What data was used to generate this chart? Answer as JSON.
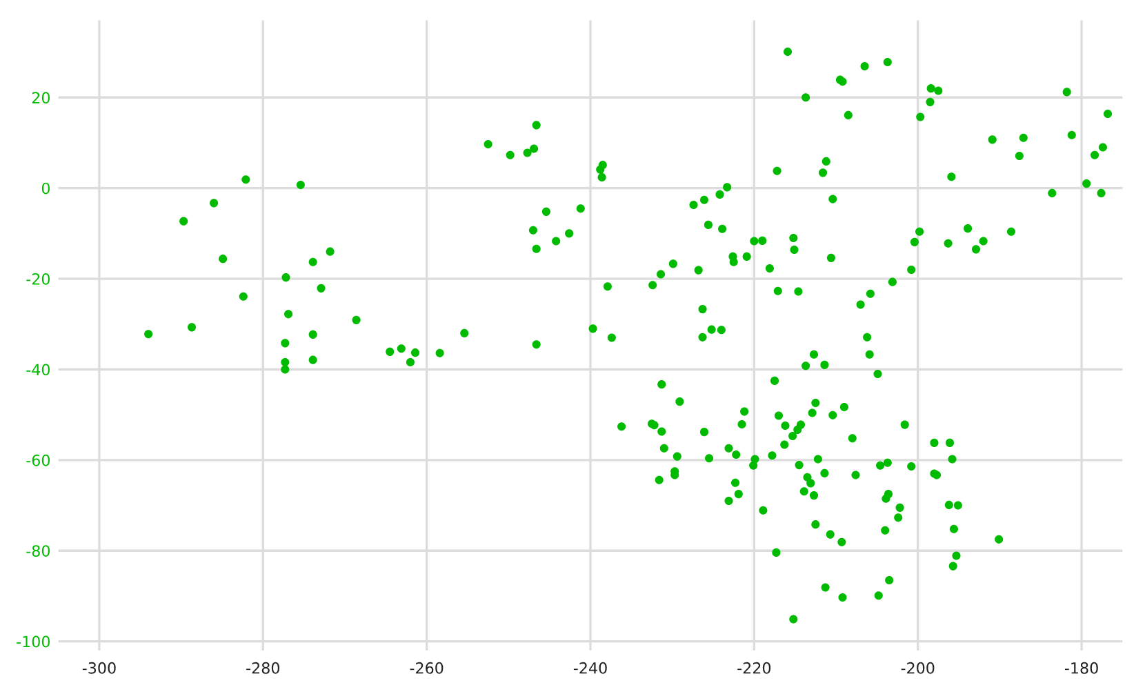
{
  "chart_data": {
    "type": "scatter",
    "series": [
      {
        "color": "#00bb00",
        "x": [
          -282.1,
          -275.4,
          -286.0,
          -289.7,
          -284.9,
          -271.8,
          -273.9,
          -277.2,
          -272.9,
          -282.4,
          -276.9,
          -268.6,
          -294.0,
          -288.7,
          -273.9,
          -277.3,
          -277.3,
          -277.3,
          -273.9,
          -264.5,
          -263.1,
          -262.0,
          -261.4,
          -258.4,
          -255.4,
          -246.6,
          -239.7,
          -237.4,
          -226.3,
          -225.2,
          -224.0,
          -246.6,
          -252.5,
          -249.8,
          -247.7,
          -246.9,
          -238.5,
          -238.8,
          -238.6,
          -245.4,
          -241.2,
          -247.0,
          -242.6,
          -244.2,
          -246.6,
          -237.9,
          -227.4,
          -226.1,
          -224.2,
          -223.3,
          -225.6,
          -223.9,
          -220.0,
          -219.0,
          -222.6,
          -222.5,
          -220.9,
          -218.1,
          -229.9,
          -231.4,
          -232.4,
          -226.8,
          -226.3,
          -215.9,
          -209.5,
          -209.2,
          -206.5,
          -203.7,
          -213.7,
          -208.5,
          -198.4,
          -197.5,
          -198.5,
          -199.7,
          -181.8,
          -176.8,
          -181.2,
          -187.1,
          -190.9,
          -187.6,
          -177.4,
          -178.4,
          -179.4,
          -183.6,
          -177.6,
          -195.9,
          -217.2,
          -211.2,
          -211.6,
          -210.4,
          -215.2,
          -215.1,
          -210.6,
          -217.1,
          -214.6,
          -199.8,
          -200.4,
          -200.8,
          -203.1,
          -205.8,
          -207.0,
          -206.2,
          -196.3,
          -193.9,
          -192.9,
          -192.0,
          -188.6,
          -205.9,
          -204.9,
          -212.7,
          -213.7,
          -211.4,
          -217.5,
          -217.0,
          -212.5,
          -212.9,
          -210.4,
          -209.0,
          -216.2,
          -214.3,
          -214.7,
          -215.3,
          -216.3,
          -217.8,
          -208.0,
          -212.2,
          -211.4,
          -214.5,
          -213.5,
          -213.1,
          -213.9,
          -212.7,
          -207.6,
          -201.6,
          -204.6,
          -203.7,
          -200.8,
          -198.0,
          -196.1,
          -195.8,
          -198.0,
          -197.7,
          -203.6,
          -203.9,
          -202.2,
          -202.4,
          -204.0,
          -196.2,
          -195.1,
          -195.6,
          -195.3,
          -195.7,
          -190.1,
          -212.5,
          -210.7,
          -209.3,
          -217.3,
          -211.3,
          -209.2,
          -204.8,
          -203.5,
          -215.2,
          -231.3,
          -229.1,
          -236.2,
          -232.5,
          -232.2,
          -231.3,
          -231.0,
          -229.4,
          -229.7,
          -229.7,
          -231.6,
          -226.1,
          -225.5,
          -223.1,
          -222.2,
          -221.5,
          -221.2,
          -219.9,
          -220.1,
          -222.3,
          -221.9,
          -223.1,
          -218.9
        ],
        "values": [
          1.9,
          0.7,
          -3.3,
          -7.3,
          -15.6,
          -14.0,
          -16.3,
          -19.7,
          -22.1,
          -23.9,
          -27.8,
          -29.1,
          -32.2,
          -30.7,
          -32.3,
          -34.2,
          -38.4,
          -40.0,
          -37.9,
          -36.1,
          -35.4,
          -38.4,
          -36.3,
          -36.4,
          -32.0,
          -34.5,
          -31.0,
          -33.0,
          -32.9,
          -31.2,
          -31.3,
          13.9,
          9.7,
          7.3,
          7.8,
          8.7,
          5.1,
          4.1,
          2.4,
          -5.2,
          -4.5,
          -9.3,
          -10.0,
          -11.7,
          -13.4,
          -21.7,
          -3.7,
          -2.6,
          -1.4,
          0.2,
          -8.1,
          -9.0,
          -11.7,
          -11.6,
          -15.1,
          -16.3,
          -15.1,
          -17.7,
          -16.7,
          -19.0,
          -21.4,
          -18.1,
          -26.7,
          30.1,
          23.9,
          23.5,
          26.9,
          27.8,
          20.0,
          16.1,
          22.0,
          21.5,
          19.0,
          15.7,
          21.2,
          16.4,
          11.7,
          11.1,
          10.7,
          7.1,
          9.0,
          7.3,
          1.0,
          -1.1,
          -1.1,
          2.5,
          3.8,
          5.9,
          3.4,
          -2.4,
          -11.0,
          -13.6,
          -15.4,
          -22.7,
          -22.8,
          -9.6,
          -11.9,
          -18.0,
          -20.7,
          -23.3,
          -25.7,
          -32.9,
          -12.2,
          -8.9,
          -13.5,
          -11.7,
          -9.6,
          -36.7,
          -41.0,
          -36.7,
          -39.2,
          -39.0,
          -42.5,
          -50.2,
          -47.4,
          -49.6,
          -50.1,
          -48.3,
          -52.4,
          -52.2,
          -53.3,
          -54.7,
          -56.6,
          -59.0,
          -55.2,
          -59.8,
          -62.9,
          -61.1,
          -63.8,
          -65.1,
          -66.9,
          -67.8,
          -63.3,
          -52.2,
          -61.2,
          -60.6,
          -61.4,
          -56.2,
          -56.2,
          -59.8,
          -63.0,
          -63.3,
          -67.5,
          -68.5,
          -70.5,
          -72.7,
          -75.5,
          -69.9,
          -70.0,
          -75.2,
          -81.1,
          -83.4,
          -77.5,
          -74.2,
          -76.4,
          -78.1,
          -80.4,
          -88.1,
          -90.3,
          -89.9,
          -86.5,
          -95.1,
          -43.3,
          -47.1,
          -52.6,
          -52.0,
          -52.3,
          -53.7,
          -57.4,
          -59.2,
          -62.5,
          -63.3,
          -64.4,
          -53.8,
          -59.6,
          -57.4,
          -58.8,
          -52.1,
          -49.3,
          -59.8,
          -61.2,
          -65.0,
          -67.5,
          -69.0,
          -71.1
        ]
      }
    ],
    "xlim": [
      -305,
      -175
    ],
    "ylim": [
      -102,
      37
    ],
    "xticks": [
      -300,
      -280,
      -260,
      -240,
      -220,
      -200,
      -180
    ],
    "yticks": [
      -100,
      -80,
      -60,
      -40,
      -20,
      0,
      20
    ],
    "grid": true,
    "marker": "circle"
  }
}
